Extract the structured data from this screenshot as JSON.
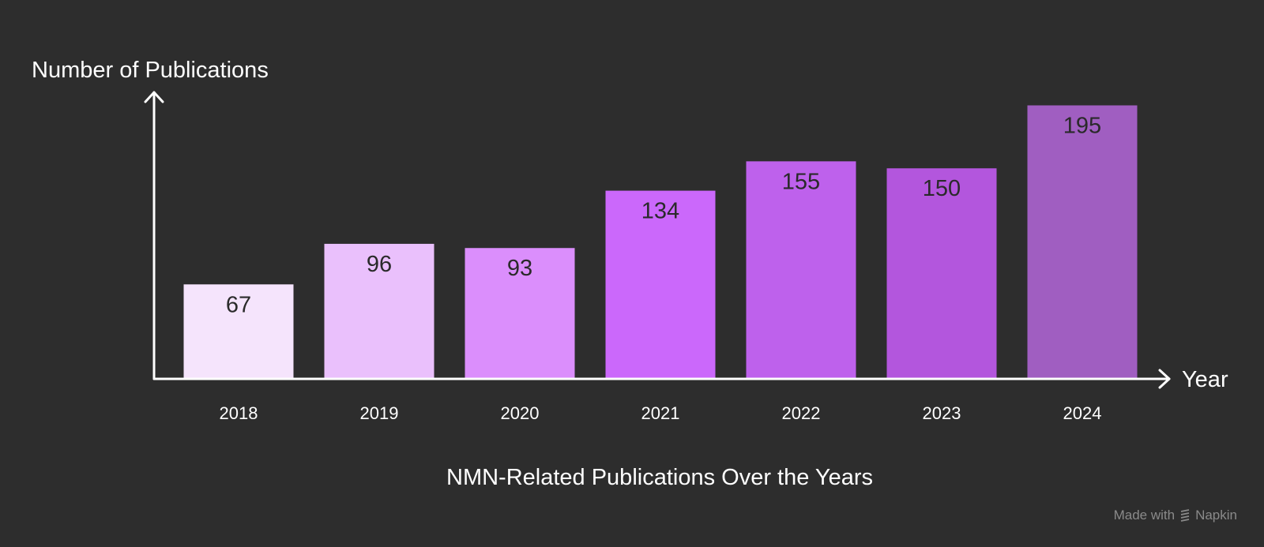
{
  "chart_data": {
    "type": "bar",
    "title": "NMN-Related Publications Over the Years",
    "xlabel": "Year",
    "ylabel": "Number of Publications",
    "categories": [
      "2018",
      "2019",
      "2020",
      "2021",
      "2022",
      "2023",
      "2024"
    ],
    "values": [
      67,
      96,
      93,
      134,
      155,
      150,
      195
    ],
    "ylim": [
      0,
      200
    ],
    "grid": false,
    "bar_colors": [
      "#f5e4fc",
      "#eac0fc",
      "#db8efc",
      "#cb68fb",
      "#be61ec",
      "#b356dd",
      "#a05ec1"
    ],
    "value_label_color": "#2a2a2a"
  },
  "colors": {
    "background": "#2d2d2d",
    "axis": "#ffffff",
    "watermark": "#8a8a8a"
  },
  "watermark": {
    "prefix": "Made with",
    "brand": "Napkin",
    "icon": "napkin-logo-icon"
  }
}
